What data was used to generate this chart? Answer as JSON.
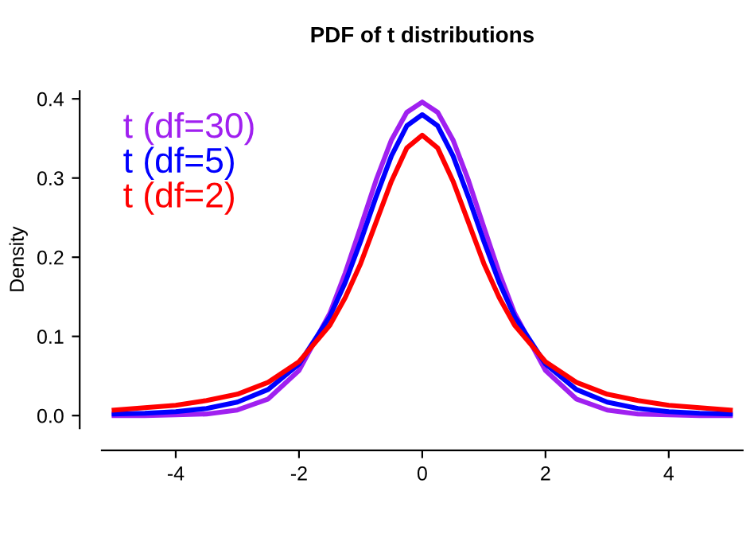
{
  "chart_data": {
    "type": "line",
    "title": "PDF of t distributions",
    "ylabel": "Density",
    "x": [
      -5,
      -4.5,
      -4,
      -3.5,
      -3,
      -2.5,
      -2,
      -1.5,
      -1.25,
      -1,
      -0.75,
      -0.5,
      -0.25,
      0,
      0.25,
      0.5,
      0.75,
      1,
      1.25,
      1.5,
      2,
      2.5,
      3,
      3.5,
      4,
      4.5,
      5
    ],
    "series": [
      {
        "name": "t (df=30)",
        "color": "#a020f0",
        "values": [
          0.0,
          0.0,
          0.001,
          0.002,
          0.007,
          0.021,
          0.057,
          0.129,
          0.18,
          0.238,
          0.297,
          0.348,
          0.383,
          0.396,
          0.383,
          0.348,
          0.297,
          0.238,
          0.18,
          0.129,
          0.057,
          0.021,
          0.007,
          0.002,
          0.001,
          0.0,
          0.0
        ]
      },
      {
        "name": "t (df=5)",
        "color": "#0000ff",
        "values": [
          0.002,
          0.003,
          0.005,
          0.009,
          0.017,
          0.033,
          0.065,
          0.125,
          0.168,
          0.22,
          0.276,
          0.328,
          0.366,
          0.38,
          0.366,
          0.328,
          0.276,
          0.22,
          0.168,
          0.125,
          0.065,
          0.033,
          0.017,
          0.009,
          0.005,
          0.003,
          0.002
        ]
      },
      {
        "name": "t (df=2)",
        "color": "#ff0000",
        "values": [
          0.007,
          0.01,
          0.013,
          0.019,
          0.027,
          0.042,
          0.068,
          0.114,
          0.149,
          0.192,
          0.244,
          0.296,
          0.338,
          0.354,
          0.338,
          0.296,
          0.244,
          0.192,
          0.149,
          0.114,
          0.068,
          0.042,
          0.027,
          0.019,
          0.013,
          0.01,
          0.007
        ]
      }
    ],
    "xlim": [
      -5.2,
      5.2
    ],
    "xticks": [
      -4,
      -2,
      0,
      2,
      4
    ],
    "ylim": [
      -0.016,
      0.41
    ],
    "yticks": [
      {
        "value": 0,
        "label": "0.0"
      },
      0.1,
      0.2,
      0.3,
      0.4
    ],
    "legend": "top left",
    "grid": false,
    "line_style": "solid",
    "marker": "none"
  }
}
